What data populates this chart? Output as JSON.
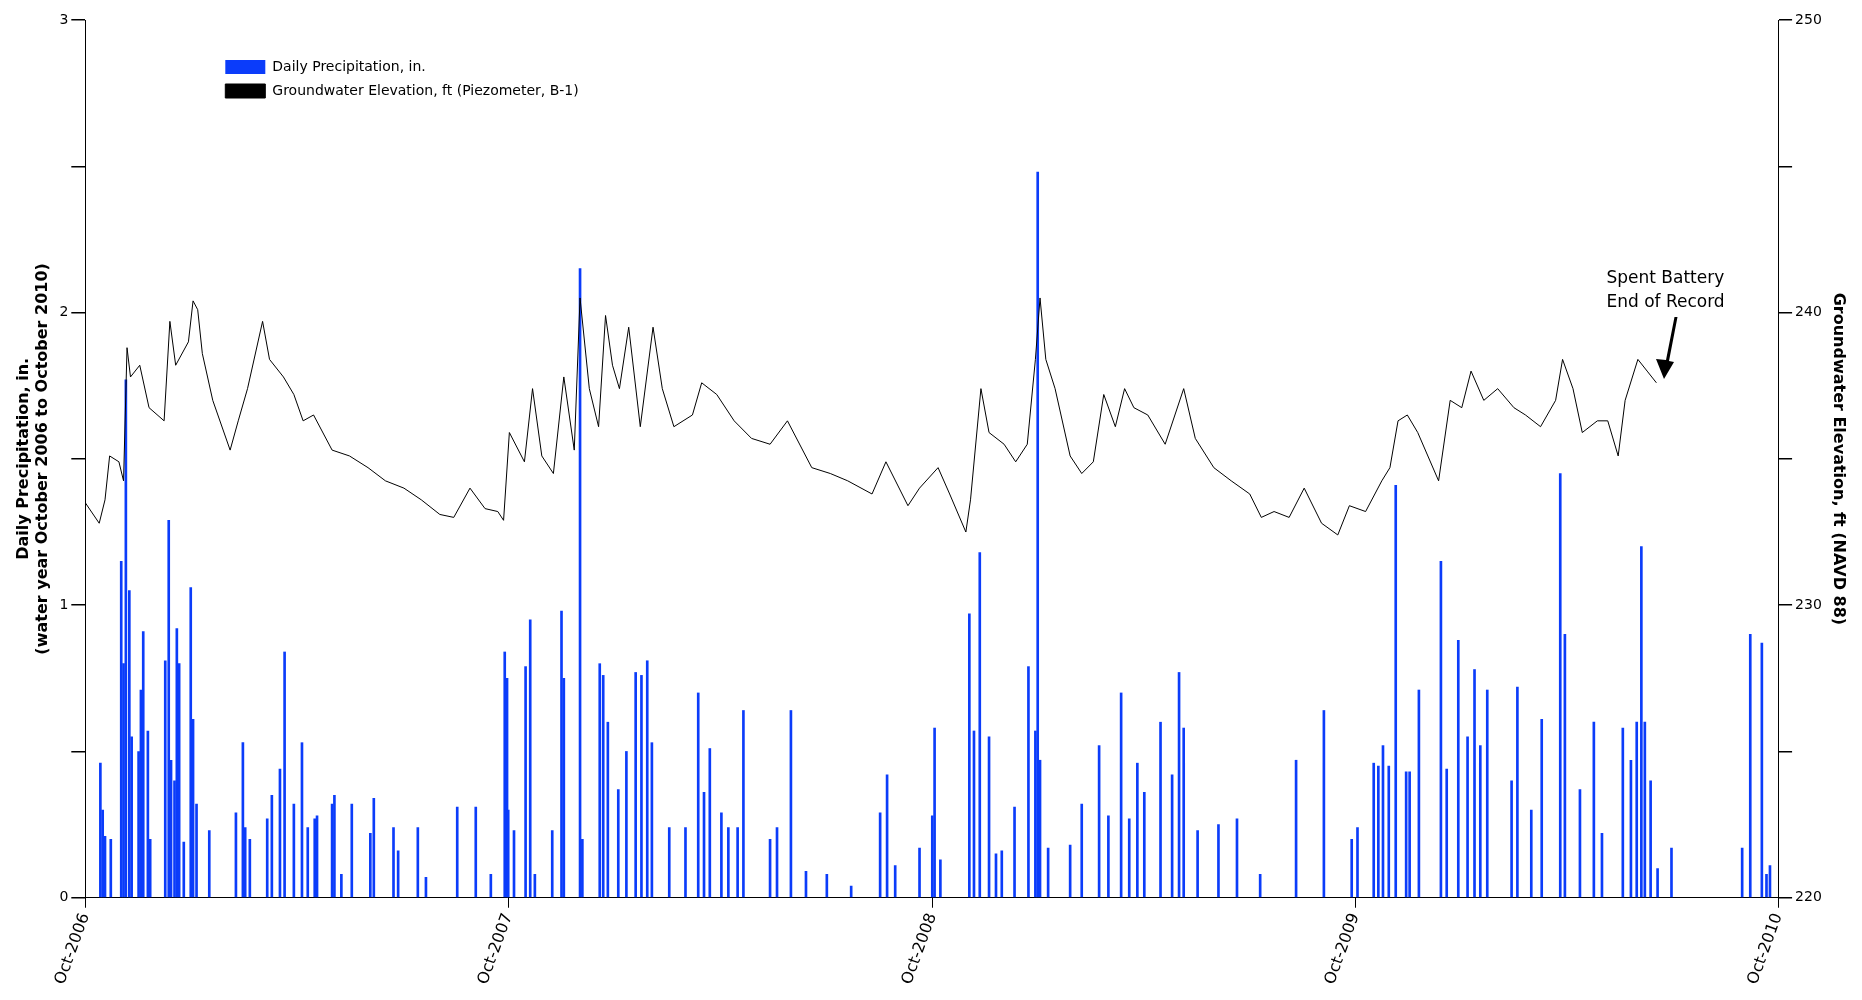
{
  "chart_data": {
    "type": "bar",
    "ylabel": "Daily Precipitation, in.\n(water year October 2006 to October 2010)",
    "y2label": "Groundwater Elevation, ft (NAVD 88)",
    "xlim": [
      "2006-10-01",
      "2010-10-01"
    ],
    "xticks": [
      {
        "value": "2006-10-01",
        "label": "Oct-2006"
      },
      {
        "value": "2007-10-01",
        "label": "Oct-2007"
      },
      {
        "value": "2008-10-01",
        "label": "Oct-2008"
      },
      {
        "value": "2009-10-01",
        "label": "Oct-2009"
      },
      {
        "value": "2010-10-01",
        "label": "Oct-2010"
      }
    ],
    "ylim": [
      0,
      3
    ],
    "yticks": [
      0,
      {
        "value": 0.5,
        "label": null
      },
      1,
      {
        "value": 1.5,
        "label": null
      },
      2,
      {
        "value": 2.5,
        "label": null
      },
      3
    ],
    "y2lim": [
      220,
      250
    ],
    "y2ticks": [
      220,
      {
        "value": 225,
        "label": null
      },
      230,
      {
        "value": 235,
        "label": null
      },
      240,
      {
        "value": 245,
        "label": null
      },
      250
    ],
    "grid": false,
    "legend": "top left",
    "annotations": [
      "Spent Battery\nEnd of Record"
    ],
    "series": [
      {
        "name": "Daily Precipitation, in.",
        "color": "#0b3cfa",
        "x": [
          "2006-10-14",
          "2006-10-16",
          "2006-10-18",
          "2006-10-23",
          "2006-11-01",
          "2006-11-03",
          "2006-11-05",
          "2006-11-08",
          "2006-11-10",
          "2006-11-16",
          "2006-11-18",
          "2006-11-20",
          "2006-11-24",
          "2006-11-26",
          "2006-12-09",
          "2006-12-12",
          "2006-12-14",
          "2006-12-17",
          "2006-12-19",
          "2006-12-21",
          "2006-12-25",
          "2006-12-31",
          "2007-01-02",
          "2007-01-05",
          "2007-01-16",
          "2007-02-08",
          "2007-02-14",
          "2007-02-16",
          "2007-02-20",
          "2007-03-07",
          "2007-03-11",
          "2007-03-18",
          "2007-03-22",
          "2007-03-30",
          "2007-04-06",
          "2007-04-11",
          "2007-04-17",
          "2007-04-19",
          "2007-05-02",
          "2007-05-04",
          "2007-05-10",
          "2007-05-19",
          "2007-06-04",
          "2007-06-07",
          "2007-06-24",
          "2007-06-28",
          "2007-07-15",
          "2007-07-22",
          "2007-08-18",
          "2007-09-03",
          "2007-09-16",
          "2007-09-28",
          "2007-09-30",
          "2007-10-01",
          "2007-10-06",
          "2007-10-16",
          "2007-10-20",
          "2007-10-24",
          "2007-11-08",
          "2007-11-16",
          "2007-11-18",
          "2007-12-02",
          "2007-12-04",
          "2007-12-19",
          "2007-12-22",
          "2007-12-26",
          "2008-01-04",
          "2008-01-11",
          "2008-01-19",
          "2008-01-24",
          "2008-01-29",
          "2008-02-02",
          "2008-02-17",
          "2008-03-02",
          "2008-03-13",
          "2008-03-18",
          "2008-03-23",
          "2008-04-02",
          "2008-04-08",
          "2008-04-16",
          "2008-04-21",
          "2008-05-14",
          "2008-05-20",
          "2008-06-01",
          "2008-06-14",
          "2008-07-02",
          "2008-07-23",
          "2008-08-17",
          "2008-08-23",
          "2008-08-30",
          "2008-09-20",
          "2008-10-01",
          "2008-10-03",
          "2008-10-08",
          "2008-11-02",
          "2008-11-06",
          "2008-11-11",
          "2008-11-19",
          "2008-11-25",
          "2008-11-30",
          "2008-12-11",
          "2008-12-23",
          "2008-12-29",
          "2008-12-31",
          "2009-01-02",
          "2009-01-09",
          "2009-01-28",
          "2009-02-07",
          "2009-02-22",
          "2009-03-02",
          "2009-03-13",
          "2009-03-20",
          "2009-03-27",
          "2009-04-02",
          "2009-04-16",
          "2009-04-26",
          "2009-05-02",
          "2009-05-06",
          "2009-05-18",
          "2009-06-05",
          "2009-06-21",
          "2009-07-11",
          "2009-08-11",
          "2009-09-04",
          "2009-09-28",
          "2009-10-03",
          "2009-10-17",
          "2009-10-21",
          "2009-10-25",
          "2009-10-30",
          "2009-11-05",
          "2009-11-14",
          "2009-11-17",
          "2009-11-25",
          "2009-12-14",
          "2009-12-19",
          "2009-12-29",
          "2010-01-06",
          "2010-01-12",
          "2010-01-17",
          "2010-01-23",
          "2010-02-13",
          "2010-02-18",
          "2010-03-02",
          "2010-03-11",
          "2010-03-27",
          "2010-03-31",
          "2010-04-13",
          "2010-04-25",
          "2010-05-02",
          "2010-05-20",
          "2010-05-27",
          "2010-06-01",
          "2010-06-05",
          "2010-06-08",
          "2010-06-13",
          "2010-06-19",
          "2010-07-01",
          "2010-08-31",
          "2010-09-07",
          "2010-09-17",
          "2010-09-21",
          "2010-09-24"
        ],
        "values": [
          0.46,
          0.3,
          0.21,
          0.2,
          1.15,
          0.8,
          1.77,
          1.05,
          0.55,
          0.5,
          0.71,
          0.91,
          0.57,
          0.2,
          0.81,
          1.29,
          0.47,
          0.4,
          0.92,
          0.8,
          0.19,
          1.06,
          0.61,
          0.32,
          0.23,
          0.29,
          0.53,
          0.24,
          0.2,
          0.27,
          0.35,
          0.44,
          0.84,
          0.32,
          0.53,
          0.24,
          0.27,
          0.28,
          0.32,
          0.35,
          0.08,
          0.32,
          0.22,
          0.34,
          0.24,
          0.16,
          0.24,
          0.07,
          0.31,
          0.31,
          0.08,
          0.84,
          0.75,
          0.3,
          0.23,
          0.79,
          0.95,
          0.08,
          0.23,
          0.98,
          0.75,
          2.15,
          0.2,
          0.8,
          0.76,
          0.6,
          0.37,
          0.5,
          0.77,
          0.76,
          0.81,
          0.53,
          0.24,
          0.24,
          0.7,
          0.36,
          0.51,
          0.29,
          0.24,
          0.24,
          0.64,
          0.2,
          0.24,
          0.64,
          0.09,
          0.08,
          0.04,
          0.29,
          0.42,
          0.11,
          0.17,
          0.28,
          0.58,
          0.13,
          0.97,
          0.57,
          1.18,
          0.55,
          0.15,
          0.16,
          0.31,
          0.79,
          0.57,
          2.48,
          0.47,
          0.17,
          0.18,
          0.32,
          0.52,
          0.28,
          0.7,
          0.27,
          0.46,
          0.36,
          0.6,
          0.42,
          0.77,
          0.58,
          0.23,
          0.25,
          0.27,
          0.08,
          0.47,
          0.64,
          0.2,
          0.24,
          0.46,
          0.45,
          0.52,
          0.45,
          1.41,
          0.43,
          0.43,
          0.71,
          1.15,
          0.44,
          0.88,
          0.55,
          0.78,
          0.52,
          0.71,
          0.4,
          0.72,
          0.3,
          0.61,
          1.45,
          0.9,
          0.37,
          0.6,
          0.22,
          0.58,
          0.47,
          0.6,
          1.2,
          0.6,
          0.4,
          0.1,
          0.17,
          0.17,
          0.9,
          0.87,
          0.08,
          0.11
        ]
      },
      {
        "name": "Groundwater Elevation, ft (Piezometer, B-1)",
        "type": "line",
        "axis": "y2",
        "color": "#000000",
        "x": [
          "2006-10-01",
          "2006-10-13",
          "2006-10-18",
          "2006-10-22",
          "2006-10-30",
          "2006-11-03",
          "2006-11-06",
          "2006-11-09",
          "2006-11-17",
          "2006-11-25",
          "2006-12-08",
          "2006-12-13",
          "2006-12-18",
          "2006-12-29",
          "2007-01-02",
          "2007-01-06",
          "2007-01-10",
          "2007-01-19",
          "2007-02-03",
          "2007-02-10",
          "2007-02-18",
          "2007-03-03",
          "2007-03-09",
          "2007-03-21",
          "2007-03-30",
          "2007-04-07",
          "2007-04-16",
          "2007-05-02",
          "2007-05-17",
          "2007-06-02",
          "2007-06-17",
          "2007-07-03",
          "2007-07-18",
          "2007-08-03",
          "2007-08-15",
          "2007-08-29",
          "2007-09-11",
          "2007-09-22",
          "2007-09-27",
          "2007-10-02",
          "2007-10-15",
          "2007-10-22",
          "2007-10-30",
          "2007-11-09",
          "2007-11-18",
          "2007-11-27",
          "2007-12-02",
          "2007-12-10",
          "2007-12-18",
          "2007-12-24",
          "2007-12-30",
          "2008-01-05",
          "2008-01-13",
          "2008-01-23",
          "2008-02-03",
          "2008-02-11",
          "2008-02-21",
          "2008-03-08",
          "2008-03-16",
          "2008-03-29",
          "2008-04-13",
          "2008-04-28",
          "2008-05-14",
          "2008-05-29",
          "2008-06-19",
          "2008-07-05",
          "2008-07-20",
          "2008-08-10",
          "2008-08-22",
          "2008-09-10",
          "2008-09-20",
          "2008-10-06",
          "2008-10-16",
          "2008-10-30",
          "2008-11-03",
          "2008-11-12",
          "2008-11-19",
          "2008-12-02",
          "2008-12-12",
          "2008-12-22",
          "2008-12-29",
          "2009-01-02",
          "2009-01-07",
          "2009-01-15",
          "2009-01-28",
          "2009-02-07",
          "2009-02-17",
          "2009-02-26",
          "2009-03-08",
          "2009-03-16",
          "2009-03-24",
          "2009-04-05",
          "2009-04-20",
          "2009-05-06",
          "2009-05-16",
          "2009-06-01",
          "2009-06-16",
          "2009-07-02",
          "2009-07-12",
          "2009-07-23",
          "2009-08-05",
          "2009-08-18",
          "2009-09-02",
          "2009-09-16",
          "2009-09-26",
          "2009-10-10",
          "2009-10-24",
          "2009-10-31",
          "2009-11-07",
          "2009-11-15",
          "2009-11-24",
          "2009-12-12",
          "2009-12-22",
          "2010-01-01",
          "2010-01-09",
          "2010-01-20",
          "2010-02-01",
          "2010-02-15",
          "2010-02-25",
          "2010-03-10",
          "2010-03-23",
          "2010-03-29",
          "2010-04-07",
          "2010-04-15",
          "2010-04-28",
          "2010-05-07",
          "2010-05-16",
          "2010-05-22",
          "2010-06-02",
          "2010-06-10",
          "2010-06-18"
        ],
        "values": [
          233.5,
          232.8,
          233.6,
          235.1,
          234.9,
          234.25,
          238.8,
          237.8,
          238.2,
          236.75,
          236.3,
          239.7,
          238.2,
          239.0,
          240.4,
          240.1,
          238.6,
          237.0,
          235.3,
          236.3,
          237.4,
          239.7,
          238.4,
          237.8,
          237.2,
          236.3,
          236.5,
          235.3,
          235.1,
          234.7,
          234.25,
          234.0,
          233.6,
          233.1,
          233.0,
          234.0,
          233.3,
          233.2,
          232.9,
          235.9,
          234.9,
          237.4,
          235.1,
          234.5,
          237.8,
          235.3,
          240.5,
          237.4,
          236.1,
          239.9,
          238.2,
          237.4,
          239.5,
          236.1,
          239.5,
          237.4,
          236.1,
          236.5,
          237.6,
          237.2,
          236.3,
          235.7,
          235.5,
          236.3,
          234.7,
          234.5,
          234.25,
          233.8,
          234.9,
          233.4,
          234.0,
          234.7,
          233.8,
          232.5,
          233.6,
          237.4,
          235.9,
          235.5,
          234.9,
          235.5,
          238.4,
          240.5,
          238.4,
          237.4,
          235.1,
          234.5,
          234.9,
          237.2,
          236.1,
          237.4,
          236.75,
          236.5,
          235.5,
          237.4,
          235.7,
          234.7,
          234.25,
          233.8,
          233.0,
          233.2,
          233.0,
          234.0,
          232.8,
          232.4,
          233.4,
          233.2,
          234.25,
          234.7,
          236.3,
          236.5,
          235.9,
          234.25,
          237.0,
          236.75,
          238.0,
          237.0,
          237.4,
          236.75,
          236.5,
          236.1,
          237.0,
          238.4,
          237.4,
          235.9,
          236.3,
          236.3,
          235.1,
          237.0,
          238.4,
          238.0,
          237.6
        ]
      }
    ]
  }
}
